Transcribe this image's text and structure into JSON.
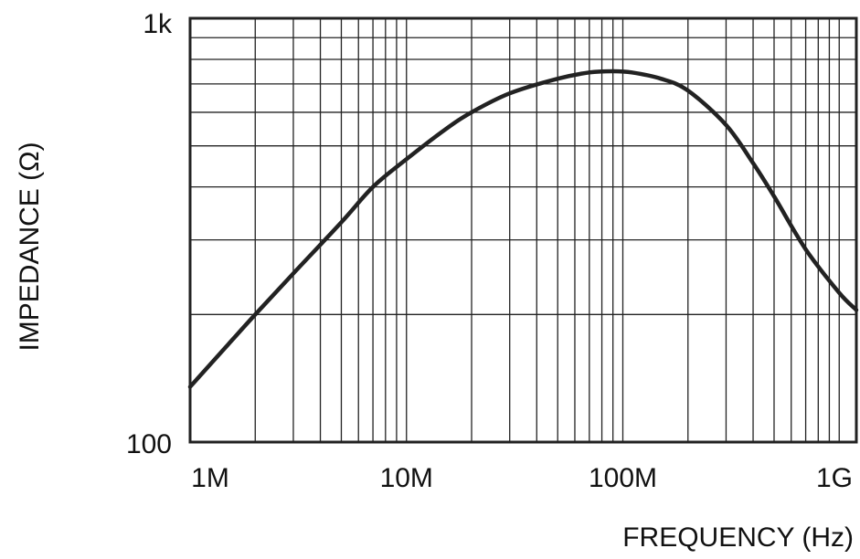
{
  "chart_data": {
    "type": "line",
    "xlabel": "FREQUENCY (Hz)",
    "ylabel": "IMPEDANCE (Ω)",
    "x_scale": "log",
    "y_scale": "log",
    "xlim": [
      1000000,
      1200000000
    ],
    "ylim": [
      100,
      1000
    ],
    "x_ticks": [
      {
        "value": 1000000,
        "label": "1M"
      },
      {
        "value": 10000000,
        "label": "10M"
      },
      {
        "value": 100000000,
        "label": "100M"
      },
      {
        "value": 1000000000,
        "label": "1G"
      }
    ],
    "y_ticks": [
      {
        "value": 100,
        "label": "100"
      },
      {
        "value": 1000,
        "label": "1k"
      }
    ],
    "grid": true,
    "colors": {
      "line": "#222222",
      "grid": "#222222",
      "frame": "#222222"
    },
    "series": [
      {
        "x": [
          1000000,
          1500000,
          2000000,
          3000000,
          5000000,
          7000000,
          10000000,
          15000000,
          20000000,
          30000000,
          50000000,
          70000000,
          90000000,
          110000000,
          150000000,
          200000000,
          300000000,
          400000000,
          500000000,
          700000000,
          1000000000,
          1200000000
        ],
        "y": [
          135,
          170,
          200,
          250,
          330,
          400,
          465,
          545,
          600,
          665,
          720,
          745,
          750,
          745,
          720,
          675,
          560,
          455,
          380,
          285,
          225,
          205
        ]
      }
    ]
  }
}
